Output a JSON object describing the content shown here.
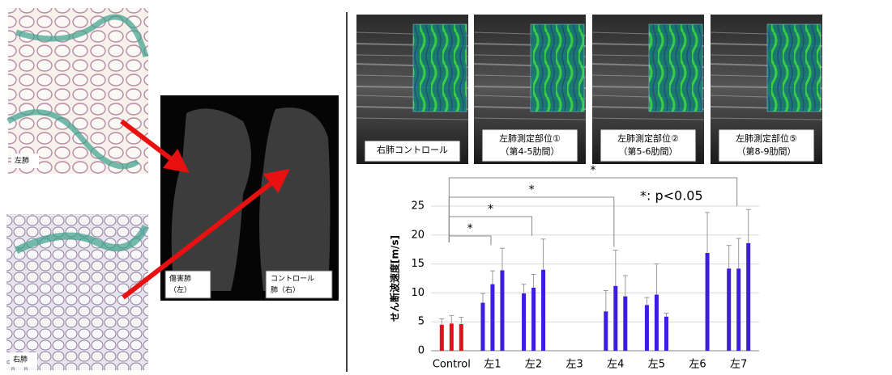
{
  "figure": {
    "histology": [
      {
        "label": "左肺"
      },
      {
        "label": "右肺"
      }
    ],
    "ct_labels": [
      [
        "傷害肺",
        "（左）"
      ],
      [
        "コントロール",
        "肺（右）"
      ]
    ],
    "ultrasound": [
      {
        "lines": [
          "右肺コントロール"
        ]
      },
      {
        "lines": [
          "左肺測定部位①",
          "（第4-5肋間）"
        ]
      },
      {
        "lines": [
          "左肺測定部位②",
          "（第5-6肋間）"
        ]
      },
      {
        "lines": [
          "左肺測定部位⑤",
          "（第8-9肋間）"
        ]
      }
    ]
  },
  "chart_data": {
    "type": "bar",
    "y_label": "せん断波速度[m/s]",
    "categories": [
      "Control",
      "左1",
      "左2",
      "左3",
      "左4",
      "左5",
      "左6",
      "左7"
    ],
    "category_colors": [
      "#e0101c",
      "#3b1ee0",
      "#3b1ee0",
      "#3b1ee0",
      "#3b1ee0",
      "#3b1ee0",
      "#3b1ee0",
      "#3b1ee0"
    ],
    "series": [
      {
        "values": [
          4.5,
          8.3,
          9.9,
          null,
          6.8,
          7.9,
          null,
          14.2
        ],
        "errors": [
          1.0,
          1.6,
          1.6,
          null,
          3.6,
          1.3,
          null,
          4.0
        ]
      },
      {
        "values": [
          4.7,
          11.5,
          10.9,
          null,
          11.2,
          9.7,
          null,
          14.2
        ],
        "errors": [
          1.4,
          2.3,
          2.3,
          null,
          6.2,
          5.3,
          null,
          5.2
        ]
      },
      {
        "values": [
          4.6,
          13.9,
          14.0,
          null,
          9.4,
          5.9,
          16.9,
          18.6
        ],
        "errors": [
          1.2,
          3.8,
          5.3,
          null,
          3.6,
          0.6,
          7.0,
          5.8
        ]
      }
    ],
    "ylim": [
      0,
      25
    ],
    "yticks": [
      0,
      5,
      10,
      15,
      20,
      25
    ],
    "grid": true,
    "significance": [
      {
        "label": "*",
        "from": "Control",
        "to": "左1"
      },
      {
        "label": "*",
        "from": "Control",
        "to": "左2"
      },
      {
        "label": "*",
        "from": "Control",
        "to": "左4"
      },
      {
        "label": "*",
        "from": "Control",
        "to": "左7"
      }
    ],
    "note": "*: p<0.05"
  }
}
